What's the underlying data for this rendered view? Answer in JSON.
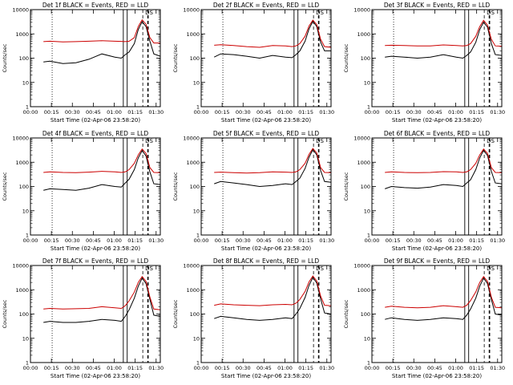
{
  "figure": {
    "xlabel": "Start Time (02-Apr-06 23:58:20)",
    "ylabel": "Counts/sec",
    "x_ticks": [
      "00:00",
      "00:15",
      "00:30",
      "00:45",
      "01:00",
      "01:15",
      "01:30"
    ],
    "y_ticks": [
      "1",
      "10",
      "100",
      "1000",
      "10000"
    ],
    "colors": {
      "events": "#000000",
      "lld": "#cc0000",
      "axes": "#000000",
      "background": "#ffffff"
    }
  },
  "chart_data": [
    {
      "type": "line",
      "title": "Det 1f BLACK = Events, RED = LLD",
      "xlabel": "Start Time (02-Apr-06 23:58:20)",
      "ylabel": "Counts/sec",
      "xlim": [
        0,
        100
      ],
      "ylim": [
        1,
        10000
      ],
      "yscale": "log",
      "annotation": "DS",
      "vlines": {
        "dotted": [
          16.7
        ],
        "solid": [
          71.5,
          74.5
        ],
        "dashed": [
          86.5,
          90.5
        ]
      },
      "x": [
        10,
        15,
        25,
        35,
        45,
        55,
        65,
        70,
        73,
        76,
        80,
        83,
        86,
        89,
        92,
        95,
        100
      ],
      "series": [
        {
          "name": "BLACK = Events",
          "values": [
            70,
            75,
            60,
            65,
            90,
            150,
            110,
            100,
            140,
            180,
            400,
            1500,
            3200,
            2000,
            500,
            150,
            120
          ]
        },
        {
          "name": "RED = LLD",
          "values": [
            480,
            500,
            470,
            480,
            500,
            520,
            500,
            490,
            480,
            500,
            700,
            2000,
            3800,
            2500,
            700,
            420,
            420
          ]
        }
      ]
    },
    {
      "type": "line",
      "title": "Det 2f BLACK = Events, RED = LLD",
      "xlabel": "Start Time (02-Apr-06 23:58:20)",
      "ylabel": "Counts/sec",
      "xlim": [
        0,
        100
      ],
      "ylim": [
        1,
        10000
      ],
      "yscale": "log",
      "annotation": "DS",
      "vlines": {
        "dotted": [
          16.7
        ],
        "solid": [
          71.5,
          74.5
        ],
        "dashed": [
          86.5,
          90.5
        ]
      },
      "x": [
        10,
        15,
        25,
        35,
        45,
        55,
        65,
        70,
        73,
        76,
        80,
        83,
        86,
        89,
        92,
        95,
        100
      ],
      "series": [
        {
          "name": "BLACK = Events",
          "values": [
            110,
            150,
            140,
            120,
            100,
            130,
            110,
            105,
            140,
            200,
            500,
            1600,
            3300,
            2000,
            450,
            200,
            200
          ]
        },
        {
          "name": "RED = LLD",
          "values": [
            340,
            360,
            330,
            300,
            280,
            330,
            320,
            300,
            320,
            400,
            800,
            2100,
            3700,
            2400,
            600,
            300,
            280
          ]
        }
      ]
    },
    {
      "type": "line",
      "title": "Det 3f BLACK = Events, RED = LLD",
      "xlabel": "Start Time (02-Apr-06 23:58:20)",
      "ylabel": "Counts/sec",
      "xlim": [
        0,
        100
      ],
      "ylim": [
        1,
        10000
      ],
      "yscale": "log",
      "annotation": "DS",
      "vlines": {
        "dotted": [
          16.7
        ],
        "solid": [
          71.5,
          74.5
        ],
        "dashed": [
          86.5,
          90.5
        ]
      },
      "x": [
        10,
        15,
        25,
        35,
        45,
        55,
        65,
        70,
        73,
        76,
        80,
        83,
        86,
        89,
        92,
        95,
        100
      ],
      "series": [
        {
          "name": "BLACK = Events",
          "values": [
            110,
            120,
            110,
            100,
            110,
            140,
            110,
            100,
            130,
            180,
            450,
            1500,
            3000,
            1900,
            400,
            140,
            130
          ]
        },
        {
          "name": "RED = LLD",
          "values": [
            330,
            340,
            330,
            320,
            320,
            350,
            330,
            320,
            330,
            400,
            800,
            2000,
            3600,
            2300,
            600,
            320,
            310
          ]
        }
      ]
    },
    {
      "type": "line",
      "title": "Det 4f BLACK = Events, RED = LLD",
      "xlabel": "Start Time (02-Apr-06 23:58:20)",
      "ylabel": "Counts/sec",
      "xlim": [
        0,
        100
      ],
      "ylim": [
        1,
        10000
      ],
      "yscale": "log",
      "annotation": "DS",
      "vlines": {
        "dotted": [
          16.7
        ],
        "solid": [
          71.5,
          74.5
        ],
        "dashed": [
          86.5,
          90.5
        ]
      },
      "x": [
        10,
        15,
        25,
        35,
        45,
        55,
        65,
        70,
        73,
        76,
        80,
        83,
        86,
        89,
        92,
        95,
        100
      ],
      "series": [
        {
          "name": "BLACK = Events",
          "values": [
            70,
            80,
            75,
            70,
            85,
            120,
            100,
            95,
            140,
            200,
            500,
            1500,
            3000,
            1800,
            400,
            130,
            120
          ]
        },
        {
          "name": "RED = LLD",
          "values": [
            380,
            400,
            380,
            370,
            390,
            420,
            400,
            380,
            400,
            500,
            900,
            2000,
            3500,
            2300,
            600,
            380,
            370
          ]
        }
      ]
    },
    {
      "type": "line",
      "title": "Det 5f BLACK = Events, RED = LLD",
      "xlabel": "Start Time (02-Apr-06 23:58:20)",
      "ylabel": "Counts/sec",
      "xlim": [
        0,
        100
      ],
      "ylim": [
        1,
        10000
      ],
      "yscale": "log",
      "annotation": "DS",
      "vlines": {
        "dotted": [
          16.7
        ],
        "solid": [
          71.5,
          74.5
        ],
        "dashed": [
          86.5,
          90.5
        ]
      },
      "x": [
        10,
        15,
        25,
        35,
        45,
        55,
        65,
        70,
        73,
        76,
        80,
        83,
        86,
        89,
        92,
        95,
        100
      ],
      "series": [
        {
          "name": "BLACK = Events",
          "values": [
            130,
            160,
            140,
            120,
            100,
            110,
            130,
            120,
            160,
            220,
            550,
            1600,
            3300,
            2000,
            450,
            160,
            150
          ]
        },
        {
          "name": "RED = LLD",
          "values": [
            380,
            390,
            370,
            360,
            370,
            400,
            390,
            380,
            400,
            500,
            900,
            2100,
            3700,
            2400,
            600,
            380,
            370
          ]
        }
      ]
    },
    {
      "type": "line",
      "title": "Det 6f BLACK = Events, RED = LLD",
      "xlabel": "Start Time (02-Apr-06 23:58:20)",
      "ylabel": "Counts/sec",
      "xlim": [
        0,
        100
      ],
      "ylim": [
        1,
        10000
      ],
      "yscale": "log",
      "annotation": "DS",
      "vlines": {
        "dotted": [
          16.7
        ],
        "solid": [
          71.5,
          74.5
        ],
        "dashed": [
          86.5,
          90.5
        ]
      },
      "x": [
        10,
        15,
        25,
        35,
        45,
        55,
        65,
        70,
        73,
        76,
        80,
        83,
        86,
        89,
        92,
        95,
        100
      ],
      "series": [
        {
          "name": "BLACK = Events",
          "values": [
            80,
            100,
            90,
            85,
            95,
            120,
            110,
            100,
            140,
            190,
            500,
            1500,
            3100,
            1900,
            420,
            140,
            130
          ]
        },
        {
          "name": "RED = LLD",
          "values": [
            380,
            400,
            380,
            370,
            380,
            410,
            400,
            380,
            400,
            500,
            900,
            2000,
            3500,
            2300,
            600,
            380,
            370
          ]
        }
      ]
    },
    {
      "type": "line",
      "title": "Det 7f BLACK = Events, RED = LLD",
      "xlabel": "Start Time (02-Apr-06 23:58:20)",
      "ylabel": "Counts/sec",
      "xlim": [
        0,
        100
      ],
      "ylim": [
        1,
        10000
      ],
      "yscale": "log",
      "annotation": "DS",
      "vlines": {
        "dotted": [
          16.7
        ],
        "solid": [
          71.5,
          74.5
        ],
        "dashed": [
          86.5,
          90.5
        ]
      },
      "x": [
        10,
        15,
        25,
        35,
        45,
        55,
        65,
        70,
        73,
        76,
        80,
        83,
        86,
        89,
        92,
        95,
        100
      ],
      "series": [
        {
          "name": "BLACK = Events",
          "values": [
            45,
            50,
            45,
            45,
            50,
            60,
            55,
            50,
            80,
            150,
            450,
            1400,
            3000,
            1800,
            400,
            90,
            80
          ]
        },
        {
          "name": "RED = LLD",
          "values": [
            160,
            170,
            160,
            165,
            170,
            200,
            180,
            170,
            220,
            350,
            800,
            2000,
            3500,
            2200,
            500,
            160,
            150
          ]
        }
      ]
    },
    {
      "type": "line",
      "title": "Det 8f BLACK = Events, RED = LLD",
      "xlabel": "Start Time (02-Apr-06 23:58:20)",
      "ylabel": "Counts/sec",
      "xlim": [
        0,
        100
      ],
      "ylim": [
        1,
        10000
      ],
      "yscale": "log",
      "annotation": "DS",
      "vlines": {
        "dotted": [
          16.7
        ],
        "solid": [
          71.5,
          74.5
        ],
        "dashed": [
          86.5,
          90.5
        ]
      },
      "x": [
        10,
        15,
        25,
        35,
        45,
        55,
        65,
        70,
        73,
        76,
        80,
        83,
        86,
        89,
        92,
        95,
        100
      ],
      "series": [
        {
          "name": "BLACK = Events",
          "values": [
            65,
            80,
            70,
            60,
            55,
            60,
            70,
            65,
            100,
            170,
            480,
            1500,
            3200,
            1900,
            420,
            110,
            100
          ]
        },
        {
          "name": "RED = LLD",
          "values": [
            230,
            260,
            240,
            230,
            220,
            240,
            250,
            240,
            280,
            400,
            850,
            2100,
            3700,
            2300,
            550,
            230,
            220
          ]
        }
      ]
    },
    {
      "type": "line",
      "title": "Det 9f BLACK = Events, RED = LLD",
      "xlabel": "Start Time (02-Apr-06 23:58:20)",
      "ylabel": "Counts/sec",
      "xlim": [
        0,
        100
      ],
      "ylim": [
        1,
        10000
      ],
      "yscale": "log",
      "annotation": "DS",
      "vlines": {
        "dotted": [
          16.7
        ],
        "solid": [
          71.5,
          74.5
        ],
        "dashed": [
          86.5,
          90.5
        ]
      },
      "x": [
        10,
        15,
        25,
        35,
        45,
        55,
        65,
        70,
        73,
        76,
        80,
        83,
        86,
        89,
        92,
        95,
        100
      ],
      "series": [
        {
          "name": "BLACK = Events",
          "values": [
            60,
            70,
            60,
            55,
            60,
            70,
            65,
            60,
            90,
            160,
            450,
            1400,
            3000,
            1800,
            400,
            100,
            90
          ]
        },
        {
          "name": "RED = LLD",
          "values": [
            190,
            210,
            190,
            180,
            190,
            220,
            200,
            190,
            230,
            360,
            820,
            2000,
            3500,
            2200,
            500,
            190,
            180
          ]
        }
      ]
    }
  ]
}
